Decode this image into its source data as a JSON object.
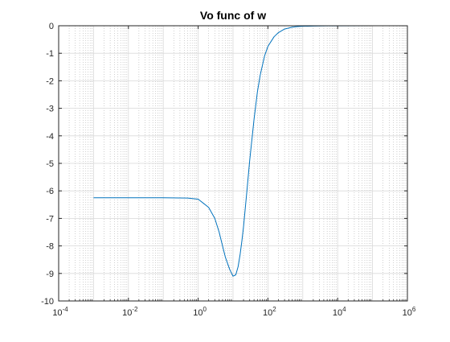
{
  "chart_data": {
    "type": "line",
    "title": "Vo func of w",
    "xlabel": "",
    "ylabel": "",
    "x_scale": "log",
    "xlim": [
      0.0001,
      1000000
    ],
    "ylim": [
      -10,
      0
    ],
    "x_ticks": [
      {
        "value": 0.0001,
        "base": "10",
        "exp": "-4"
      },
      {
        "value": 0.01,
        "base": "10",
        "exp": "-2"
      },
      {
        "value": 1,
        "base": "10",
        "exp": "0"
      },
      {
        "value": 100,
        "base": "10",
        "exp": "2"
      },
      {
        "value": 10000,
        "base": "10",
        "exp": "4"
      },
      {
        "value": 1000000,
        "base": "10",
        "exp": "6"
      }
    ],
    "y_ticks": [
      0,
      -1,
      -2,
      -3,
      -4,
      -5,
      -6,
      -7,
      -8,
      -9,
      -10
    ],
    "grid": true,
    "minor_grid": true,
    "line_color": "#0072bd",
    "series": [
      {
        "x": [
          0.001,
          0.01,
          0.1,
          0.5,
          1,
          2,
          3,
          4,
          5,
          6,
          8,
          10,
          12,
          14,
          16,
          18,
          20,
          25,
          30,
          40,
          50,
          60,
          80,
          100,
          150,
          200,
          300,
          500,
          700,
          1000,
          2000,
          5000,
          10000,
          100000
        ],
        "y": [
          -6.25,
          -6.25,
          -6.25,
          -6.26,
          -6.3,
          -6.6,
          -7.0,
          -7.5,
          -8.0,
          -8.4,
          -8.85,
          -9.1,
          -9.05,
          -8.75,
          -8.3,
          -7.8,
          -7.3,
          -6.0,
          -4.9,
          -3.4,
          -2.4,
          -1.8,
          -1.1,
          -0.75,
          -0.4,
          -0.25,
          -0.12,
          -0.05,
          -0.03,
          -0.02,
          -0.01,
          -0.004,
          -0.002,
          0
        ]
      }
    ]
  }
}
